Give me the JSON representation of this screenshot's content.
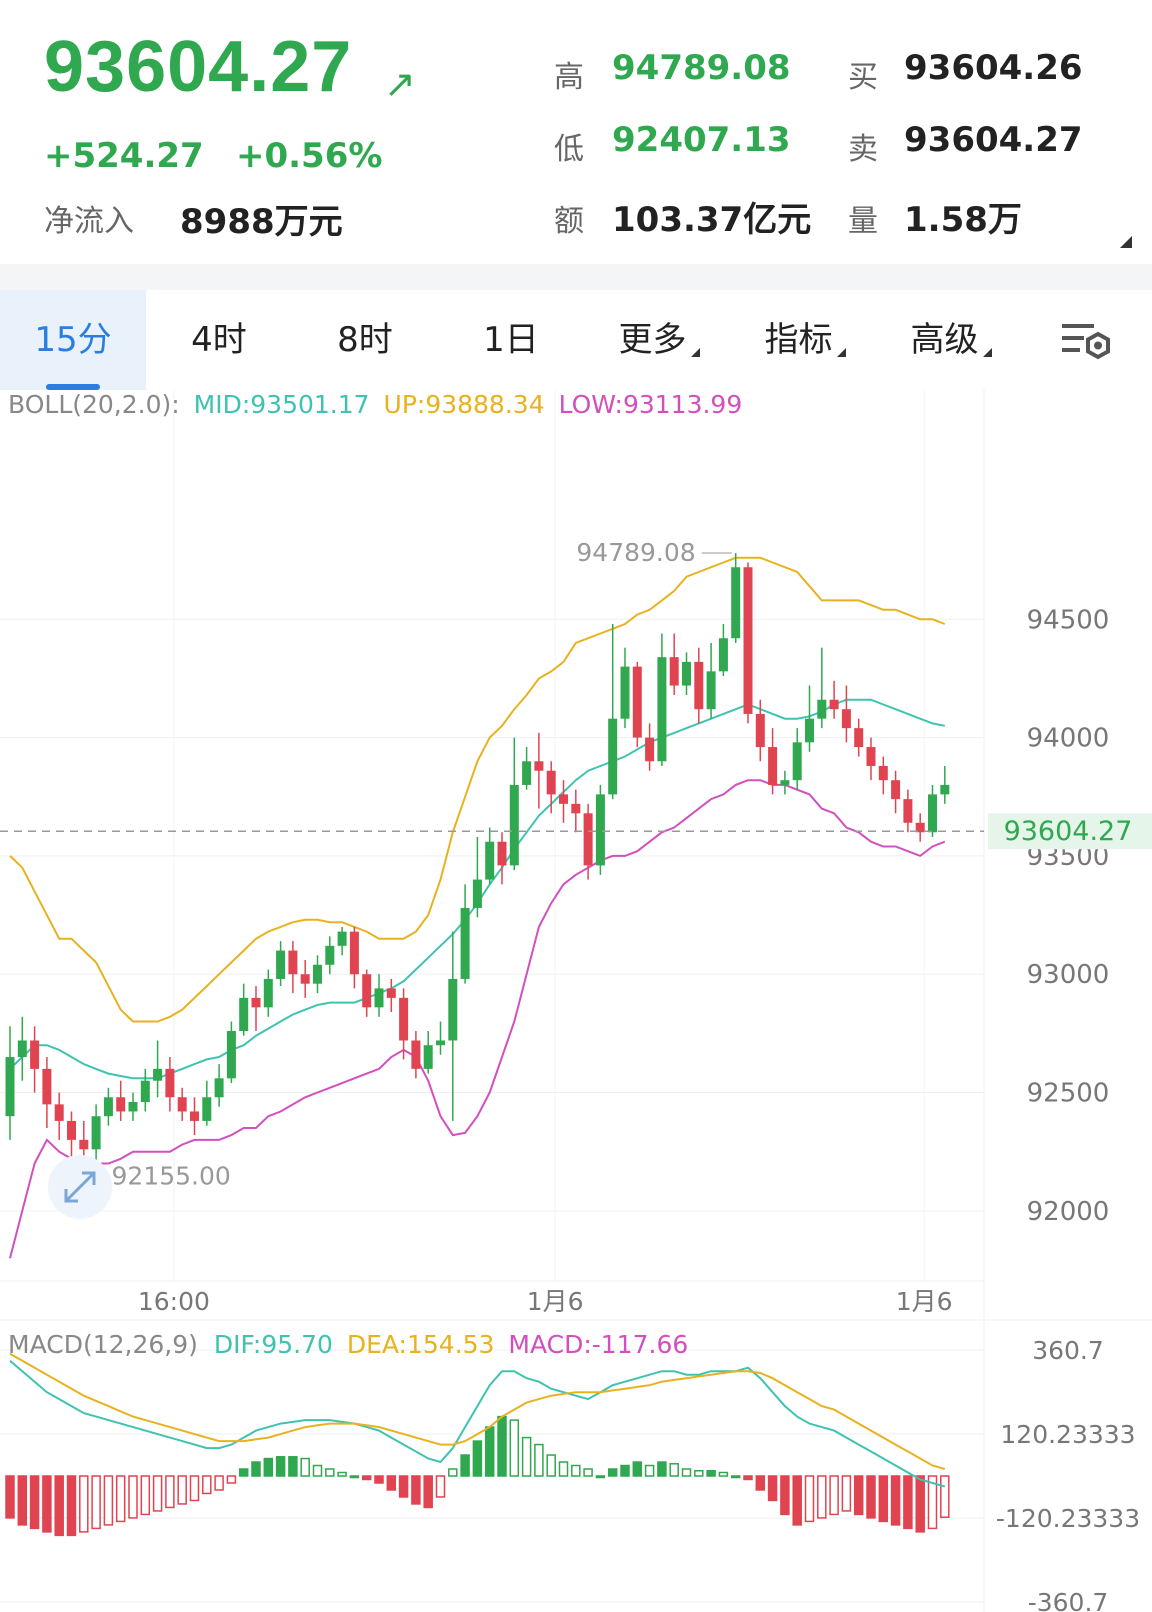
{
  "quote": {
    "price": "93604.27",
    "change": "+524.27",
    "change_pct": "+0.56%",
    "net_inflow_label": "净流入",
    "net_inflow": "8988万元",
    "high_label": "高",
    "high": "94789.08",
    "low_label": "低",
    "low": "92407.13",
    "amount_label": "额",
    "amount": "103.37亿元",
    "bid_label": "买",
    "bid": "93604.26",
    "ask_label": "卖",
    "ask": "93604.27",
    "volume_label": "量",
    "volume": "1.58万",
    "colors": {
      "up": "#2fa84f",
      "down": "#e04451"
    }
  },
  "tabs": [
    {
      "label": "15分",
      "active": true
    },
    {
      "label": "4时"
    },
    {
      "label": "8时"
    },
    {
      "label": "1日"
    },
    {
      "label": "更多",
      "dropdown": true
    },
    {
      "label": "指标",
      "dropdown": true
    },
    {
      "label": "高级",
      "dropdown": true
    }
  ],
  "settings_icon": "chart-settings-icon",
  "boll": {
    "label": "BOLL(20,2.0):",
    "mid": "MID:93501.17",
    "up": "UP:93888.34",
    "low": "LOW:93113.99",
    "colors": {
      "mid": "#3ec3b0",
      "up": "#e8b21f",
      "low": "#d34fbf"
    }
  },
  "macd": {
    "label": "MACD(12,26,9)",
    "dif": "DIF:95.70",
    "dea": "DEA:154.53",
    "macd": "MACD:-117.66",
    "colors": {
      "dif": "#3ec3b0",
      "dea": "#e8b21f",
      "macd": "#d34fbf"
    }
  },
  "chart_data": {
    "type": "candlestick",
    "price_axis_ticks": [
      "94500",
      "94000",
      "93500",
      "93000",
      "92500",
      "92000"
    ],
    "time_axis_ticks": [
      "16:00",
      "1月6",
      "1月6"
    ],
    "current_price_label": "93604.27",
    "max_label": "94789.08",
    "min_label": "92155.00",
    "ylim": [
      91750,
      95300
    ],
    "macd_axis_ticks": [
      "360.7",
      "120.23333",
      "-120.23333",
      "-360.7"
    ],
    "macd_ylim": [
      -360.7,
      360.7
    ],
    "candles": [
      [
        92400,
        92650,
        92300,
        92780
      ],
      [
        92650,
        92720,
        92550,
        92820
      ],
      [
        92720,
        92600,
        92500,
        92780
      ],
      [
        92600,
        92450,
        92350,
        92650
      ],
      [
        92450,
        92380,
        92300,
        92500
      ],
      [
        92380,
        92300,
        92150,
        92420
      ],
      [
        92300,
        92260,
        92160,
        92380
      ],
      [
        92260,
        92400,
        92200,
        92450
      ],
      [
        92400,
        92480,
        92360,
        92520
      ],
      [
        92480,
        92420,
        92380,
        92550
      ],
      [
        92420,
        92460,
        92380,
        92500
      ],
      [
        92460,
        92550,
        92420,
        92600
      ],
      [
        92550,
        92600,
        92480,
        92720
      ],
      [
        92600,
        92480,
        92420,
        92650
      ],
      [
        92480,
        92420,
        92380,
        92520
      ],
      [
        92420,
        92380,
        92320,
        92480
      ],
      [
        92380,
        92480,
        92360,
        92550
      ],
      [
        92480,
        92560,
        92440,
        92620
      ],
      [
        92560,
        92760,
        92540,
        92800
      ],
      [
        92760,
        92900,
        92740,
        92960
      ],
      [
        92900,
        92860,
        92760,
        92950
      ],
      [
        92860,
        92980,
        92820,
        93020
      ],
      [
        92980,
        93100,
        92950,
        93140
      ],
      [
        93100,
        93000,
        92920,
        93140
      ],
      [
        93000,
        92960,
        92900,
        93060
      ],
      [
        92960,
        93040,
        92920,
        93080
      ],
      [
        93040,
        93120,
        93000,
        93160
      ],
      [
        93120,
        93180,
        93080,
        93200
      ],
      [
        93180,
        93000,
        92940,
        93200
      ],
      [
        93000,
        92860,
        92820,
        93020
      ],
      [
        92860,
        92940,
        92820,
        93000
      ],
      [
        92940,
        92900,
        92840,
        92980
      ],
      [
        92900,
        92720,
        92640,
        92940
      ],
      [
        92720,
        92600,
        92560,
        92760
      ],
      [
        92600,
        92700,
        92580,
        92760
      ],
      [
        92700,
        92720,
        92660,
        92800
      ],
      [
        92720,
        92980,
        92380,
        93180
      ],
      [
        92980,
        93280,
        92960,
        93380
      ],
      [
        93280,
        93400,
        93240,
        93580
      ],
      [
        93400,
        93560,
        93380,
        93620
      ],
      [
        93560,
        93460,
        93380,
        93600
      ],
      [
        93460,
        93800,
        93440,
        94000
      ],
      [
        93800,
        93900,
        93780,
        93960
      ],
      [
        93900,
        93860,
        93700,
        94020
      ],
      [
        93860,
        93760,
        93680,
        93900
      ],
      [
        93760,
        93720,
        93640,
        93820
      ],
      [
        93720,
        93680,
        93600,
        93780
      ],
      [
        93680,
        93460,
        93400,
        93720
      ],
      [
        93460,
        93760,
        93420,
        93800
      ],
      [
        93760,
        94080,
        93740,
        94480
      ],
      [
        94080,
        94300,
        94040,
        94380
      ],
      [
        94300,
        94000,
        93960,
        94320
      ],
      [
        94000,
        93900,
        93860,
        94060
      ],
      [
        93900,
        94340,
        93880,
        94440
      ],
      [
        94340,
        94220,
        94180,
        94440
      ],
      [
        94220,
        94320,
        94180,
        94360
      ],
      [
        94320,
        94120,
        94060,
        94380
      ],
      [
        94120,
        94280,
        94080,
        94400
      ],
      [
        94280,
        94420,
        94260,
        94480
      ],
      [
        94420,
        94720,
        94400,
        94780
      ],
      [
        94720,
        94100,
        94060,
        94740
      ],
      [
        94100,
        93960,
        93900,
        94160
      ],
      [
        93960,
        93800,
        93760,
        94040
      ],
      [
        93800,
        93820,
        93760,
        93860
      ],
      [
        93820,
        93980,
        93780,
        94040
      ],
      [
        93980,
        94080,
        93940,
        94220
      ],
      [
        94080,
        94160,
        94040,
        94380
      ],
      [
        94160,
        94120,
        94080,
        94240
      ],
      [
        94120,
        94040,
        93980,
        94220
      ],
      [
        94040,
        93960,
        93920,
        94080
      ],
      [
        93960,
        93880,
        93820,
        94000
      ],
      [
        93880,
        93820,
        93760,
        93920
      ],
      [
        93820,
        93740,
        93680,
        93860
      ],
      [
        93740,
        93640,
        93600,
        93780
      ],
      [
        93640,
        93600,
        93560,
        93680
      ],
      [
        93600,
        93760,
        93580,
        93800
      ],
      [
        93760,
        93800,
        93720,
        93880
      ]
    ],
    "series": [
      {
        "name": "MID",
        "values": [
          92600,
          92650,
          92700,
          92700,
          92680,
          92650,
          92620,
          92600,
          92580,
          92570,
          92560,
          92560,
          92560,
          92580,
          92600,
          92620,
          92640,
          92650,
          92680,
          92700,
          92740,
          92770,
          92800,
          92830,
          92850,
          92870,
          92880,
          92880,
          92880,
          92900,
          92920,
          92940,
          92970,
          93020,
          93070,
          93120,
          93170,
          93230,
          93300,
          93380,
          93450,
          93530,
          93600,
          93670,
          93720,
          93770,
          93820,
          93860,
          93880,
          93900,
          93920,
          93950,
          93980,
          94000,
          94020,
          94040,
          94060,
          94080,
          94100,
          94120,
          94140,
          94120,
          94100,
          94080,
          94080,
          94090,
          94110,
          94140,
          94160,
          94160,
          94160,
          94140,
          94120,
          94100,
          94080,
          94060,
          94050
        ]
      },
      {
        "name": "UP",
        "values": [
          93500,
          93450,
          93350,
          93250,
          93150,
          93150,
          93100,
          93050,
          92950,
          92850,
          92800,
          92800,
          92800,
          92820,
          92850,
          92900,
          92950,
          93000,
          93050,
          93100,
          93150,
          93180,
          93200,
          93220,
          93230,
          93230,
          93220,
          93220,
          93200,
          93180,
          93150,
          93150,
          93150,
          93180,
          93250,
          93400,
          93600,
          93750,
          93900,
          94000,
          94050,
          94120,
          94180,
          94250,
          94280,
          94320,
          94400,
          94420,
          94440,
          94460,
          94480,
          94520,
          94540,
          94580,
          94620,
          94680,
          94700,
          94720,
          94740,
          94760,
          94760,
          94760,
          94740,
          94720,
          94700,
          94640,
          94580,
          94580,
          94580,
          94580,
          94560,
          94540,
          94540,
          94520,
          94500,
          94500,
          94480
        ]
      },
      {
        "name": "LOW",
        "values": [
          91800,
          92000,
          92200,
          92300,
          92250,
          92220,
          92200,
          92200,
          92200,
          92220,
          92250,
          92250,
          92250,
          92250,
          92280,
          92300,
          92300,
          92300,
          92320,
          92350,
          92350,
          92400,
          92420,
          92450,
          92480,
          92500,
          92520,
          92540,
          92560,
          92580,
          92600,
          92650,
          92680,
          92650,
          92550,
          92400,
          92320,
          92330,
          92400,
          92500,
          92650,
          92800,
          93000,
          93200,
          93300,
          93380,
          93420,
          93450,
          93480,
          93500,
          93500,
          93520,
          93560,
          93600,
          93620,
          93660,
          93700,
          93740,
          93760,
          93800,
          93820,
          93820,
          93800,
          93800,
          93780,
          93760,
          93700,
          93680,
          93620,
          93600,
          93560,
          93540,
          93540,
          93520,
          93500,
          93540,
          93560
        ]
      },
      {
        "name": "DIF",
        "values": [
          330,
          300,
          270,
          240,
          220,
          200,
          180,
          170,
          160,
          150,
          140,
          130,
          120,
          110,
          100,
          90,
          80,
          80,
          90,
          110,
          130,
          140,
          150,
          155,
          160,
          160,
          160,
          155,
          150,
          140,
          130,
          110,
          90,
          70,
          50,
          40,
          80,
          140,
          200,
          260,
          300,
          300,
          280,
          270,
          250,
          240,
          230,
          220,
          240,
          260,
          270,
          280,
          290,
          300,
          300,
          290,
          290,
          300,
          300,
          300,
          310,
          280,
          240,
          200,
          170,
          150,
          140,
          130,
          110,
          90,
          70,
          50,
          30,
          10,
          -10,
          -20,
          -30
        ]
      },
      {
        "name": "DEA",
        "values": [
          350,
          330,
          310,
          290,
          270,
          250,
          230,
          215,
          200,
          185,
          170,
          160,
          150,
          140,
          130,
          120,
          110,
          100,
          100,
          100,
          105,
          110,
          120,
          130,
          140,
          145,
          150,
          150,
          150,
          145,
          140,
          130,
          120,
          110,
          100,
          90,
          90,
          100,
          120,
          140,
          170,
          190,
          210,
          220,
          230,
          235,
          240,
          240,
          240,
          245,
          250,
          255,
          260,
          270,
          275,
          280,
          285,
          290,
          295,
          300,
          300,
          295,
          280,
          260,
          240,
          220,
          200,
          190,
          170,
          150,
          130,
          110,
          90,
          70,
          50,
          30,
          20
        ]
      },
      {
        "name": "MACD",
        "values": [
          -120,
          -140,
          -150,
          -160,
          -170,
          -170,
          -160,
          -150,
          -140,
          -130,
          -120,
          -110,
          -100,
          -90,
          -80,
          -70,
          -50,
          -40,
          -20,
          20,
          40,
          50,
          55,
          55,
          50,
          30,
          20,
          10,
          0,
          -10,
          -20,
          -40,
          -60,
          -80,
          -90,
          -60,
          20,
          60,
          100,
          140,
          170,
          160,
          110,
          90,
          60,
          40,
          30,
          20,
          0,
          20,
          30,
          40,
          30,
          40,
          35,
          20,
          15,
          15,
          10,
          0,
          -10,
          -40,
          -70,
          -110,
          -140,
          -130,
          -120,
          -110,
          -100,
          -110,
          -120,
          -130,
          -140,
          -150,
          -160,
          -150,
          -118
        ]
      }
    ]
  }
}
